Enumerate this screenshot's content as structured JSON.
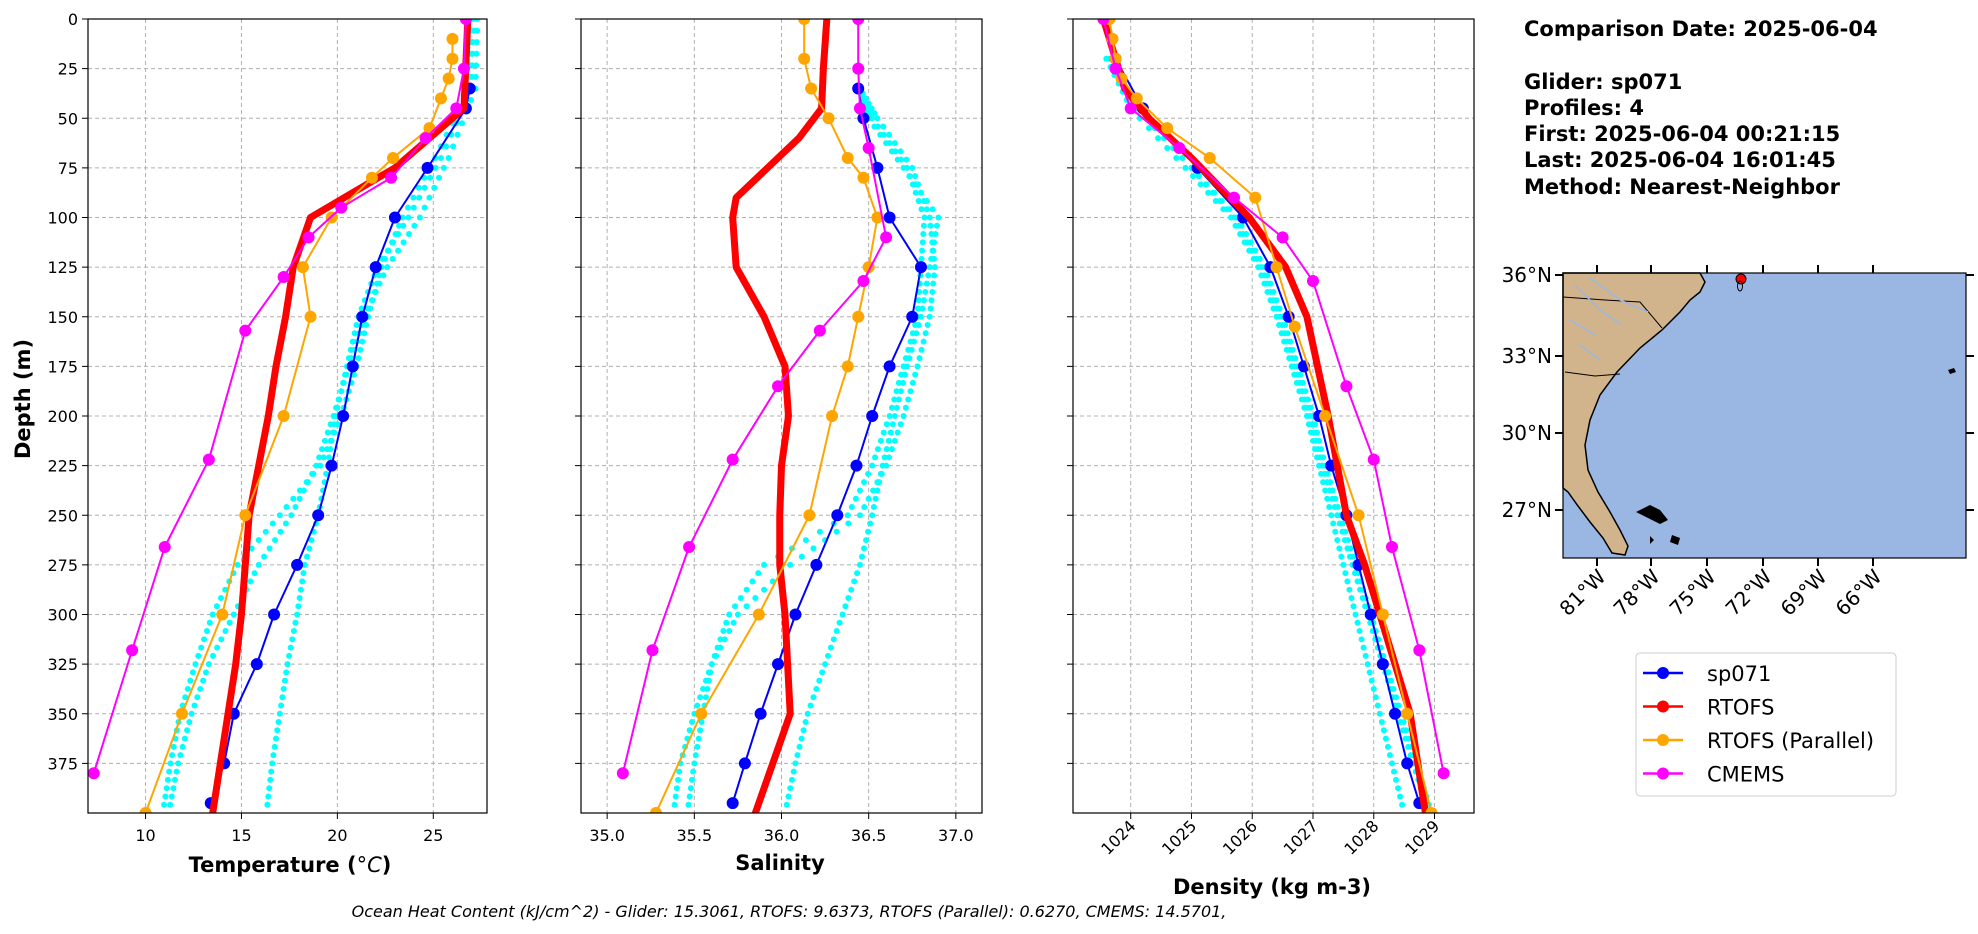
{
  "chart_data": [
    {
      "type": "line",
      "panel": "temperature",
      "xlabel": "Temperature (°C)",
      "ylabel": "Depth (m)",
      "xlim": [
        7,
        27.8
      ],
      "ylim": [
        400,
        0
      ],
      "xticks": [
        10,
        15,
        20,
        25
      ],
      "yticks": [
        0,
        25,
        50,
        75,
        100,
        125,
        150,
        175,
        200,
        225,
        250,
        275,
        300,
        325,
        350,
        375
      ],
      "grid": true,
      "depth": [
        0,
        50,
        75,
        100,
        125,
        150,
        175,
        200,
        225,
        250,
        275,
        300,
        325,
        350,
        375,
        400
      ],
      "series": [
        {
          "name": "sp071",
          "color": "#0000ff",
          "style": "line-markers",
          "x": [
            26.9,
            26.7,
            24.7,
            23.0,
            22.0,
            21.3,
            20.8,
            20.3,
            19.7,
            19.0,
            17.9,
            16.7,
            15.8,
            14.6,
            14.1,
            13.4
          ],
          "y": [
            35,
            45,
            75,
            100,
            125,
            150,
            175,
            200,
            225,
            250,
            275,
            300,
            325,
            350,
            375,
            395
          ]
        },
        {
          "name": "RTOFS",
          "color": "#ff0000",
          "style": "thick-line",
          "x": [
            26.8,
            26.6,
            23.0,
            18.6,
            17.7,
            17.3,
            16.8,
            16.4,
            15.9,
            15.4,
            15.2,
            15.0,
            14.7,
            14.3,
            13.9,
            13.5
          ],
          "y": [
            0,
            45,
            75,
            100,
            125,
            150,
            175,
            200,
            225,
            250,
            275,
            300,
            325,
            350,
            375,
            400
          ]
        },
        {
          "name": "RTOFS (Parallel)",
          "color": "#ffa500",
          "style": "line-markers",
          "x": [
            26.0,
            26.0,
            25.8,
            25.4,
            24.8,
            22.9,
            21.8,
            19.7,
            18.2,
            18.6,
            17.2,
            15.2,
            14.0,
            11.9,
            10.0
          ],
          "y": [
            10,
            20,
            30,
            40,
            55,
            70,
            80,
            100,
            125,
            150,
            200,
            250,
            300,
            350,
            400
          ]
        },
        {
          "name": "CMEMS",
          "color": "#ff00ff",
          "style": "line-markers",
          "x": [
            26.7,
            26.6,
            26.2,
            24.6,
            22.8,
            20.2,
            18.5,
            17.2,
            15.2,
            13.3,
            11.0,
            9.3,
            7.3
          ],
          "y": [
            0,
            25,
            45,
            60,
            80,
            95,
            110,
            130,
            157,
            222,
            266,
            318,
            380
          ]
        },
        {
          "name": "",
          "color": "#00ffff",
          "style": "dots",
          "x": [
            27.1,
            27.0,
            25.4,
            23.7,
            22.1,
            21.1,
            20.5,
            19.9,
            19.5,
            19.0,
            18.3,
            17.9,
            17.4,
            17.0,
            16.6,
            16.3
          ],
          "y": [
            0,
            35,
            70,
            100,
            125,
            150,
            175,
            200,
            225,
            250,
            275,
            300,
            325,
            350,
            375,
            400
          ]
        },
        {
          "name": "",
          "color": "#00ffff",
          "style": "dots",
          "x": [
            27.3,
            27.2,
            25.8,
            24.3,
            22.6,
            21.4,
            20.6,
            19.8,
            18.9,
            17.6,
            15.9,
            14.6,
            13.3,
            12.4,
            11.7,
            11.2
          ],
          "y": [
            0,
            35,
            70,
            100,
            125,
            150,
            175,
            200,
            225,
            250,
            275,
            300,
            325,
            350,
            375,
            400
          ]
        },
        {
          "name": "",
          "color": "#00ffff",
          "style": "dots",
          "x": [
            27.0,
            26.9,
            25.1,
            23.4,
            22.3,
            21.6,
            21.0,
            20.2,
            19.1,
            17.0,
            14.8,
            13.5,
            12.6,
            11.8,
            11.3,
            10.9
          ],
          "y": [
            0,
            35,
            70,
            100,
            125,
            150,
            175,
            200,
            225,
            250,
            275,
            300,
            325,
            350,
            375,
            400
          ]
        }
      ]
    },
    {
      "type": "line",
      "panel": "salinity",
      "xlabel": "Salinity",
      "xlim": [
        34.85,
        37.15
      ],
      "ylim": [
        400,
        0
      ],
      "xticks": [
        35.0,
        35.5,
        36.0,
        36.5,
        37.0
      ],
      "xtick_labels": [
        "35.0",
        "35.5",
        "36.0",
        "36.5",
        "37.0"
      ],
      "grid": true,
      "series": [
        {
          "name": "sp071",
          "color": "#0000ff",
          "style": "line-markers",
          "x": [
            36.44,
            36.47,
            36.55,
            36.62,
            36.8,
            36.75,
            36.62,
            36.52,
            36.43,
            36.32,
            36.2,
            36.08,
            35.98,
            35.88,
            35.79,
            35.72
          ],
          "y": [
            35,
            50,
            75,
            100,
            125,
            150,
            175,
            200,
            225,
            250,
            275,
            300,
            325,
            350,
            375,
            395
          ]
        },
        {
          "name": "RTOFS",
          "color": "#ff0000",
          "style": "thick-line",
          "x": [
            36.26,
            36.24,
            36.23,
            36.1,
            35.92,
            35.74,
            35.72,
            35.74,
            35.9,
            36.02,
            36.04,
            36.0,
            35.99,
            35.99,
            36.02,
            36.05,
            35.95,
            35.85
          ],
          "y": [
            0,
            25,
            45,
            60,
            75,
            90,
            100,
            125,
            150,
            175,
            200,
            225,
            250,
            275,
            300,
            350,
            375,
            400
          ]
        },
        {
          "name": "RTOFS (Parallel)",
          "color": "#ffa500",
          "style": "line-markers",
          "x": [
            36.13,
            36.13,
            36.17,
            36.27,
            36.38,
            36.47,
            36.55,
            36.5,
            36.44,
            36.38,
            36.29,
            36.16,
            35.87,
            35.54,
            35.28
          ],
          "y": [
            0,
            20,
            35,
            50,
            70,
            80,
            100,
            125,
            150,
            175,
            200,
            250,
            300,
            350,
            400
          ]
        },
        {
          "name": "CMEMS",
          "color": "#ff00ff",
          "style": "line-markers",
          "x": [
            36.44,
            36.44,
            36.45,
            36.5,
            36.6,
            36.47,
            36.22,
            35.98,
            35.72,
            35.47,
            35.26,
            35.09
          ],
          "y": [
            0,
            25,
            45,
            65,
            110,
            132,
            157,
            185,
            222,
            266,
            318,
            380
          ]
        },
        {
          "name": "",
          "color": "#00ffff",
          "style": "dots",
          "x": [
            36.45,
            36.5,
            36.7,
            36.9,
            36.85,
            36.8,
            36.72,
            36.65,
            36.58,
            36.52,
            36.45,
            36.35,
            36.25,
            36.15,
            36.08,
            36.02
          ],
          "y": [
            35,
            50,
            75,
            100,
            125,
            150,
            175,
            200,
            225,
            250,
            275,
            300,
            325,
            350,
            375,
            400
          ]
        },
        {
          "name": "",
          "color": "#00ffff",
          "style": "dots",
          "x": [
            36.45,
            36.55,
            36.75,
            36.85,
            36.88,
            36.85,
            36.78,
            36.7,
            36.6,
            36.45,
            36.05,
            35.75,
            35.6,
            35.5,
            35.42,
            35.38
          ],
          "y": [
            35,
            50,
            75,
            100,
            125,
            150,
            175,
            200,
            225,
            250,
            275,
            300,
            325,
            350,
            375,
            400
          ]
        },
        {
          "name": "",
          "color": "#00ffff",
          "style": "dots",
          "x": [
            36.45,
            36.52,
            36.72,
            36.82,
            36.8,
            36.78,
            36.7,
            36.62,
            36.52,
            36.38,
            35.9,
            35.7,
            35.6,
            35.55,
            35.5,
            35.46
          ],
          "y": [
            35,
            50,
            75,
            100,
            125,
            150,
            175,
            200,
            225,
            250,
            275,
            300,
            325,
            350,
            375,
            400
          ]
        }
      ]
    },
    {
      "type": "line",
      "panel": "density",
      "xlabel": "Density (kg m-3)",
      "xlim": [
        1023.05,
        1029.65
      ],
      "ylim": [
        400,
        0
      ],
      "xticks": [
        1024,
        1025,
        1026,
        1027,
        1028,
        1029
      ],
      "xtick_labels": [
        "1024",
        "1025",
        "1026",
        "1027",
        "1028",
        "1029"
      ],
      "grid": true,
      "series": [
        {
          "name": "sp071",
          "color": "#0000ff",
          "style": "line-markers",
          "x": [
            1023.75,
            1024.2,
            1025.1,
            1025.85,
            1026.3,
            1026.6,
            1026.85,
            1027.1,
            1027.3,
            1027.55,
            1027.75,
            1027.95,
            1028.15,
            1028.35,
            1028.55,
            1028.75
          ],
          "y": [
            20,
            45,
            75,
            100,
            125,
            150,
            175,
            200,
            225,
            250,
            275,
            300,
            325,
            350,
            375,
            395
          ]
        },
        {
          "name": "RTOFS",
          "color": "#ff0000",
          "style": "thick-line",
          "x": [
            1023.55,
            1023.75,
            1023.9,
            1024.3,
            1025.0,
            1025.95,
            1026.55,
            1026.9,
            1027.25,
            1027.55,
            1027.85,
            1028.1,
            1028.35,
            1028.6,
            1028.85
          ],
          "y": [
            0,
            20,
            35,
            50,
            70,
            100,
            125,
            150,
            200,
            250,
            275,
            300,
            325,
            350,
            400
          ]
        },
        {
          "name": "RTOFS (Parallel)",
          "color": "#ffa500",
          "style": "line-markers",
          "x": [
            1023.65,
            1023.7,
            1023.75,
            1023.85,
            1024.1,
            1024.6,
            1025.3,
            1026.05,
            1026.4,
            1026.7,
            1027.2,
            1027.75,
            1028.15,
            1028.55,
            1028.95
          ],
          "y": [
            0,
            10,
            20,
            30,
            40,
            55,
            70,
            90,
            125,
            155,
            200,
            250,
            300,
            350,
            400
          ]
        },
        {
          "name": "CMEMS",
          "color": "#ff00ff",
          "style": "line-markers",
          "x": [
            1023.55,
            1023.75,
            1024.0,
            1024.8,
            1025.7,
            1026.5,
            1027.0,
            1027.55,
            1028.0,
            1028.3,
            1028.75,
            1029.15
          ],
          "y": [
            0,
            25,
            45,
            65,
            90,
            110,
            132,
            185,
            222,
            266,
            318,
            380
          ]
        },
        {
          "name": "",
          "color": "#00ffff",
          "style": "dots",
          "x": [
            1023.6,
            1024.1,
            1025.0,
            1025.75,
            1026.2,
            1026.5,
            1026.75,
            1027.0,
            1027.2,
            1027.45,
            1027.7,
            1027.95,
            1028.2,
            1028.45,
            1028.7,
            1028.95
          ],
          "y": [
            20,
            45,
            75,
            100,
            125,
            150,
            175,
            200,
            225,
            250,
            275,
            300,
            325,
            350,
            375,
            400
          ]
        },
        {
          "name": "",
          "color": "#00ffff",
          "style": "dots",
          "x": [
            1023.6,
            1024.0,
            1024.9,
            1025.65,
            1026.1,
            1026.4,
            1026.65,
            1026.9,
            1027.1,
            1027.3,
            1027.5,
            1027.7,
            1027.9,
            1028.1,
            1028.3,
            1028.5
          ],
          "y": [
            20,
            45,
            75,
            100,
            125,
            150,
            175,
            200,
            225,
            250,
            275,
            300,
            325,
            350,
            375,
            400
          ]
        },
        {
          "name": "",
          "color": "#00ffff",
          "style": "dots",
          "x": [
            1023.65,
            1024.1,
            1025.0,
            1025.7,
            1026.15,
            1026.45,
            1026.7,
            1026.95,
            1027.15,
            1027.4,
            1027.65,
            1027.9,
            1028.15,
            1028.4,
            1028.65,
            1028.9
          ],
          "y": [
            20,
            45,
            75,
            100,
            125,
            150,
            175,
            200,
            225,
            250,
            275,
            300,
            325,
            350,
            375,
            400
          ]
        }
      ]
    }
  ],
  "info": {
    "comparison_date": "Comparison Date: 2025-06-04",
    "glider": "Glider: sp071",
    "profiles": "Profiles: 4",
    "first": "First: 2025-06-04 00:21:15",
    "last": "Last: 2025-06-04 16:01:45",
    "method": "Method: Nearest-Neighbor"
  },
  "map": {
    "lat_labels": [
      "36°N",
      "33°N",
      "30°N",
      "27°N"
    ],
    "lon_labels": [
      "81°W",
      "78°W",
      "75°W",
      "72°W",
      "69°W",
      "66°W"
    ],
    "land_color": "#d2b48c",
    "ocean_color": "#9ab7e3",
    "marker_color": "#ff0000"
  },
  "legend": {
    "placement": "below map",
    "items": [
      {
        "label": "sp071",
        "color": "#0000ff"
      },
      {
        "label": "RTOFS",
        "color": "#ff0000"
      },
      {
        "label": "RTOFS (Parallel)",
        "color": "#ffa500"
      },
      {
        "label": "CMEMS",
        "color": "#ff00ff"
      }
    ]
  },
  "footer": "Ocean Heat Content (kJ/cm^2) - Glider: 15.3061,  RTOFS: 9.6373,  RTOFS (Parallel): 0.6270,  CMEMS: 14.5701,"
}
